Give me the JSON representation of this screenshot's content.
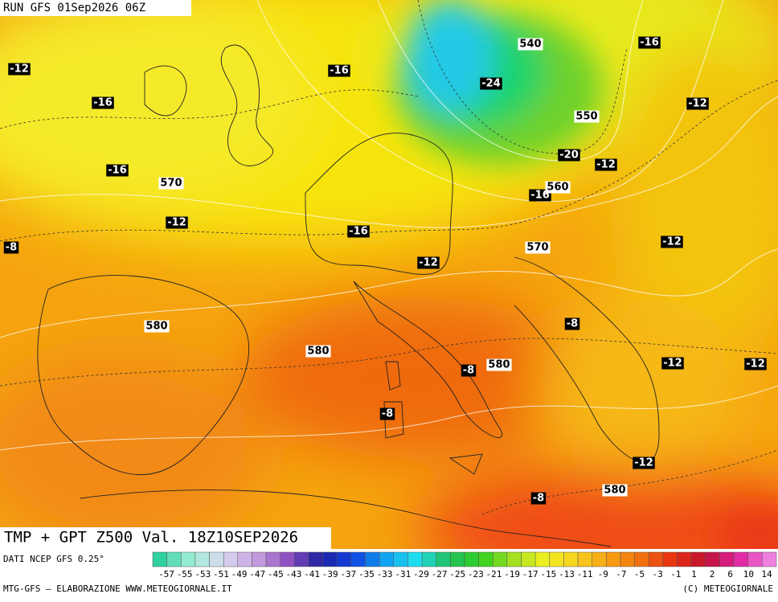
{
  "header": {
    "title": "RUN GFS 01Sep2026 06Z"
  },
  "map": {
    "caption": "TMP + GPT Z500 Val. 18Z10SEP2026",
    "temperature_labels": [
      -12,
      -16,
      -16,
      -16,
      -12,
      -8,
      -16,
      -12,
      -24,
      -20,
      -16,
      -12,
      -16,
      -12,
      -12,
      -8,
      -8,
      -8,
      -12,
      -12,
      -12,
      -8
    ],
    "geopotential_labels": [
      540,
      550,
      560,
      570,
      570,
      580,
      580,
      580,
      580
    ]
  },
  "footer": {
    "source": "DATI NCEP GFS 0.25°",
    "credit": "MTG-GFS — ELABORAZIONE WWW.METEOGIORNALE.IT",
    "copyright": "(C) METEOGIORNALE"
  },
  "colorbar": {
    "labels": [
      -57,
      -55,
      -53,
      -51,
      -49,
      -47,
      -45,
      -43,
      -41,
      -39,
      -37,
      -35,
      -33,
      -31,
      -29,
      -27,
      -25,
      -23,
      -21,
      -19,
      -17,
      -15,
      -13,
      -11,
      -9,
      -7,
      -5,
      -3,
      -1,
      1,
      2,
      6,
      10,
      14
    ]
  }
}
